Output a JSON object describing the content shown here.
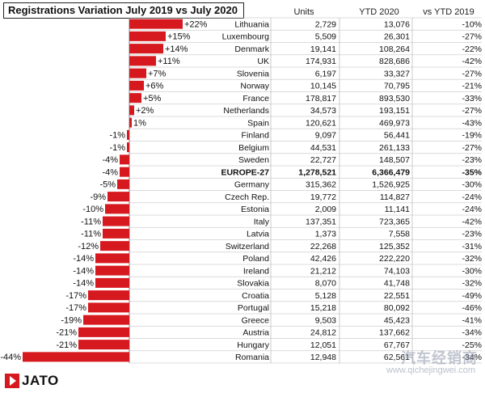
{
  "title": "Registrations Variation July 2019 vs July 2020",
  "headers": {
    "units": "Units",
    "ytd": "YTD 2020",
    "vs_ytd": "vs YTD 2019"
  },
  "logo": {
    "text": "JATO"
  },
  "watermark": {
    "cn": "汽车经销商",
    "url": "www.qichejingwei.com"
  },
  "colors": {
    "bar": "#d6181f",
    "grid": "#cfcfcf",
    "separator": "#b5b5b5"
  },
  "chart_data": {
    "type": "bar",
    "orientation": "horizontal",
    "title": "Registrations Variation July 2019 vs July 2020",
    "categories": [
      "Lithuania",
      "Luxembourg",
      "Denmark",
      "UK",
      "Slovenia",
      "Norway",
      "France",
      "Netherlands",
      "Spain",
      "Finland",
      "Belgium",
      "Sweden",
      "EUROPE-27",
      "Germany",
      "Czech Rep.",
      "Estonia",
      "Italy",
      "Latvia",
      "Switzerland",
      "Poland",
      "Ireland",
      "Slovakia",
      "Croatia",
      "Portugal",
      "Greece",
      "Austria",
      "Hungary",
      "Romania"
    ],
    "values": [
      22,
      15,
      14,
      11,
      7,
      6,
      5,
      2,
      1,
      -1,
      -1,
      -4,
      -4,
      -5,
      -9,
      -10,
      -11,
      -11,
      -12,
      -14,
      -14,
      -14,
      -17,
      -17,
      -19,
      -21,
      -21,
      -44
    ],
    "value_labels": [
      "+22%",
      "+15%",
      "+14%",
      "+11%",
      "+7%",
      "+6%",
      "+5%",
      "+2%",
      "1%",
      "-1%",
      "-1%",
      "-4%",
      "-4%",
      "-5%",
      "-9%",
      "-10%",
      "-11%",
      "-11%",
      "-12%",
      "-14%",
      "-14%",
      "-14%",
      "-17%",
      "-17%",
      "-19%",
      "-21%",
      "-21%",
      "-44%"
    ],
    "units": [
      "2,729",
      "5,509",
      "19,141",
      "174,931",
      "6,197",
      "10,145",
      "178,817",
      "34,573",
      "120,621",
      "9,097",
      "44,531",
      "22,727",
      "1,278,521",
      "315,362",
      "19,772",
      "2,009",
      "137,351",
      "1,373",
      "22,268",
      "42,426",
      "21,212",
      "8,070",
      "5,128",
      "15,218",
      "9,503",
      "24,812",
      "12,051",
      "12,948"
    ],
    "ytd_2020": [
      "13,076",
      "26,301",
      "108,264",
      "828,686",
      "33,327",
      "70,795",
      "893,530",
      "193,151",
      "469,973",
      "56,441",
      "261,133",
      "148,507",
      "6,366,479",
      "1,526,925",
      "114,827",
      "11,141",
      "723,365",
      "7,558",
      "125,352",
      "222,220",
      "74,103",
      "41,748",
      "22,551",
      "80,092",
      "45,423",
      "137,662",
      "67,767",
      "62,561"
    ],
    "vs_ytd_2019": [
      "-10%",
      "-27%",
      "-22%",
      "-42%",
      "-27%",
      "-21%",
      "-33%",
      "-27%",
      "-43%",
      "-19%",
      "-27%",
      "-23%",
      "-35%",
      "-30%",
      "-24%",
      "-24%",
      "-42%",
      "-23%",
      "-31%",
      "-32%",
      "-30%",
      "-32%",
      "-49%",
      "-46%",
      "-41%",
      "-34%",
      "-25%",
      "-34%"
    ],
    "highlight": "EUROPE-27",
    "xlim": [
      -44,
      22
    ]
  }
}
